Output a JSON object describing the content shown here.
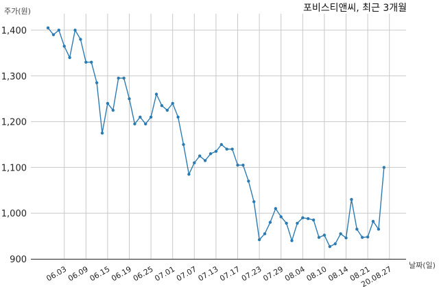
{
  "chart_data": {
    "type": "line",
    "title": "포비스티앤씨, 최근 3개월",
    "ylabel": "주가(원)",
    "xlabel": "날짜(일)",
    "ylim": [
      900,
      1410
    ],
    "yticks": [
      "1,400",
      "1,300",
      "1,200",
      "1,100",
      "1,000",
      "900"
    ],
    "ytick_values": [
      1400,
      1300,
      1200,
      1100,
      1000,
      900
    ],
    "xtick_labels": [
      "06.03",
      "06.09",
      "06.15",
      "06.19",
      "06.25",
      "07.01",
      "07.07",
      "07.13",
      "07.17",
      "07.23",
      "07.29",
      "08.04",
      "08.10",
      "08.14",
      "08.21",
      "20.08.27"
    ],
    "xtick_index": [
      3,
      7,
      11,
      15,
      19,
      23,
      27,
      31,
      35,
      39,
      43,
      47,
      51,
      55,
      59,
      63
    ],
    "grid": true,
    "line_color": "#2b7bb2",
    "series": [
      {
        "values": [
          1405,
          1390,
          1400,
          1365,
          1340,
          1400,
          1380,
          1330,
          1330,
          1285,
          1175,
          1240,
          1225,
          1295,
          1295,
          1250,
          1195,
          1210,
          1195,
          1210,
          1260,
          1235,
          1225,
          1240,
          1210,
          1150,
          1085,
          1110,
          1125,
          1115,
          1130,
          1135,
          1150,
          1140,
          1140,
          1105,
          1105,
          1070,
          1025,
          942,
          955,
          980,
          1010,
          992,
          978,
          940,
          978,
          990,
          988,
          985,
          947,
          952,
          927,
          933,
          955,
          946,
          1030,
          965,
          947,
          948,
          982,
          965,
          1100
        ]
      }
    ]
  }
}
